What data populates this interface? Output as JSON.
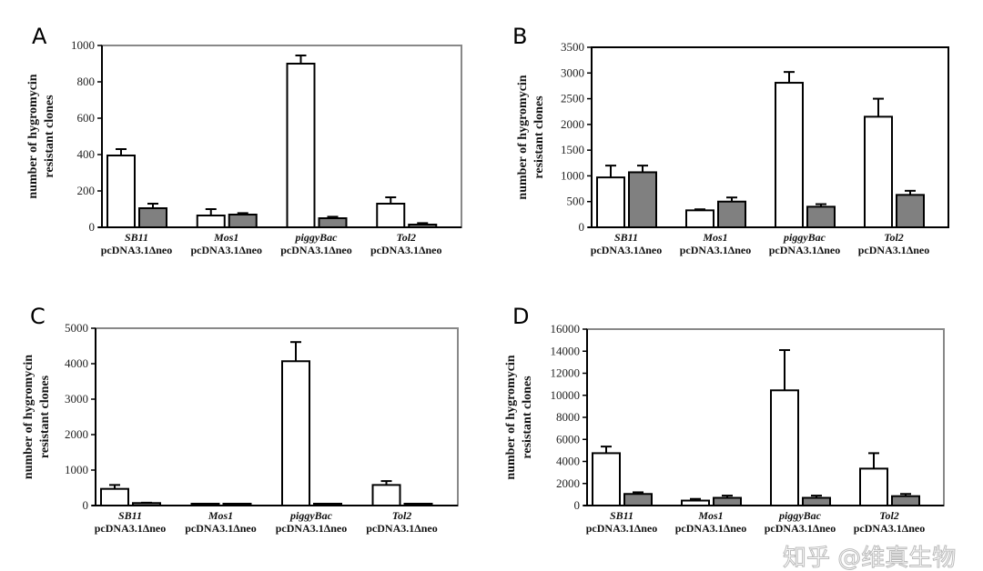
{
  "chart_data": [
    {
      "type": "bar",
      "panel": "A",
      "ylabel": [
        "number of hygromycin",
        "resistant clones"
      ],
      "ylim": [
        0,
        1000
      ],
      "yticks": [
        0,
        200,
        400,
        600,
        800,
        1000
      ],
      "categories": [
        [
          "SB11",
          "pcDNA3.1Δneo"
        ],
        [
          "Mos1",
          "pcDNA3.1Δneo"
        ],
        [
          "piggyBac",
          "pcDNA3.1Δneo"
        ],
        [
          "Tol2",
          "pcDNA3.1Δneo"
        ]
      ],
      "series": [
        {
          "values": [
            395,
            65,
            900,
            130
          ],
          "errors": [
            35,
            35,
            45,
            35
          ],
          "color": "#ffffff"
        },
        {
          "values": [
            105,
            70,
            50,
            15
          ],
          "errors": [
            25,
            8,
            8,
            8
          ],
          "color": "#808080"
        }
      ],
      "frame_color": "#888888",
      "grid": false
    },
    {
      "type": "bar",
      "panel": "B",
      "ylabel": [
        "number of hygromycin",
        "resistant clones"
      ],
      "ylim": [
        0,
        3500
      ],
      "yticks": [
        0,
        500,
        1000,
        1500,
        2000,
        2500,
        3000,
        3500
      ],
      "categories": [
        [
          "SB11",
          "pcDNA3.1Δneo"
        ],
        [
          "Mos1",
          "pcDNA3.1Δneo"
        ],
        [
          "piggyBac",
          "pcDNA3.1Δneo"
        ],
        [
          "Tol2",
          "pcDNA3.1Δneo"
        ]
      ],
      "series": [
        {
          "values": [
            970,
            330,
            2810,
            2150
          ],
          "errors": [
            230,
            20,
            210,
            350
          ],
          "color": "#ffffff"
        },
        {
          "values": [
            1070,
            500,
            400,
            630
          ],
          "errors": [
            130,
            80,
            50,
            80
          ],
          "color": "#808080"
        }
      ],
      "frame_color": "#000000",
      "grid": false
    },
    {
      "type": "bar",
      "panel": "C",
      "ylabel": [
        "number of hygromycin",
        "resistant clones"
      ],
      "ylim": [
        0,
        5000
      ],
      "yticks": [
        0,
        1000,
        2000,
        3000,
        4000,
        5000
      ],
      "categories": [
        [
          "SB11",
          "pcDNA3.1Δneo"
        ],
        [
          "Mos1",
          "pcDNA3.1Δneo"
        ],
        [
          "piggyBac",
          "pcDNA3.1Δneo"
        ],
        [
          "Tol2",
          "pcDNA3.1Δneo"
        ]
      ],
      "series": [
        {
          "values": [
            470,
            0,
            4070,
            580
          ],
          "errors": [
            110,
            20,
            540,
            110
          ],
          "color": "#ffffff"
        },
        {
          "values": [
            70,
            0,
            30,
            30
          ],
          "errors": [
            10,
            20,
            5,
            5
          ],
          "color": "#808080"
        }
      ],
      "frame_color": "#888888",
      "grid": false
    },
    {
      "type": "bar",
      "panel": "D",
      "ylabel": [
        "number of hygromycin",
        "resistant clones"
      ],
      "ylim": [
        0,
        16000
      ],
      "yticks": [
        0,
        2000,
        4000,
        6000,
        8000,
        10000,
        12000,
        14000,
        16000
      ],
      "categories": [
        [
          "SB11",
          "pcDNA3.1Δneo"
        ],
        [
          "Mos1",
          "pcDNA3.1Δneo"
        ],
        [
          "piggyBac",
          "pcDNA3.1Δneo"
        ],
        [
          "Tol2",
          "pcDNA3.1Δneo"
        ]
      ],
      "series": [
        {
          "values": [
            4750,
            450,
            10450,
            3350
          ],
          "errors": [
            600,
            150,
            3650,
            1400
          ],
          "color": "#ffffff"
        },
        {
          "values": [
            1050,
            700,
            700,
            850
          ],
          "errors": [
            150,
            200,
            200,
            200
          ],
          "color": "#808080"
        }
      ],
      "frame_color": "#888888",
      "grid": false
    }
  ],
  "watermark": "知乎 @维真生物"
}
